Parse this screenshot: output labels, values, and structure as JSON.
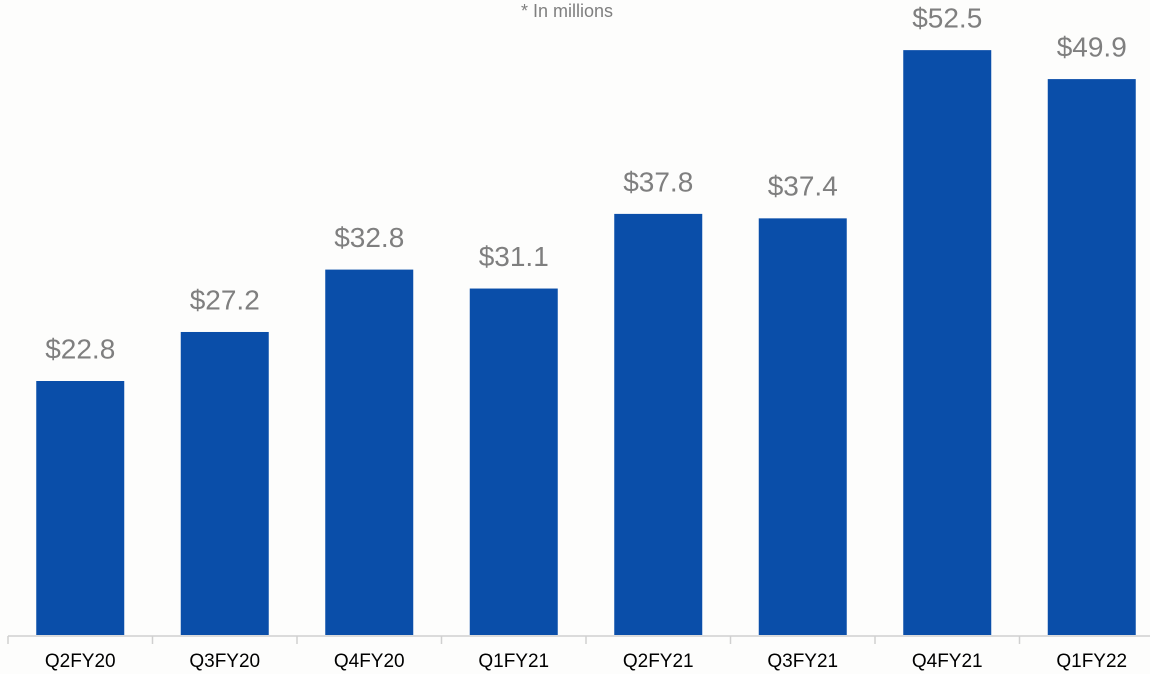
{
  "chart_data": {
    "type": "bar",
    "subtitle": "* In millions",
    "categories": [
      "Q2FY20",
      "Q3FY20",
      "Q4FY20",
      "Q1FY21",
      "Q2FY21",
      "Q3FY21",
      "Q4FY21",
      "Q1FY22"
    ],
    "values": [
      22.8,
      27.2,
      32.8,
      31.1,
      37.8,
      37.4,
      52.5,
      49.9
    ],
    "value_labels": [
      "$22.8",
      "$27.2",
      "$32.8",
      "$31.1",
      "$37.8",
      "$37.4",
      "$52.5",
      "$49.9"
    ],
    "color": "#0a4ea9",
    "ylim": [
      0,
      57
    ]
  }
}
